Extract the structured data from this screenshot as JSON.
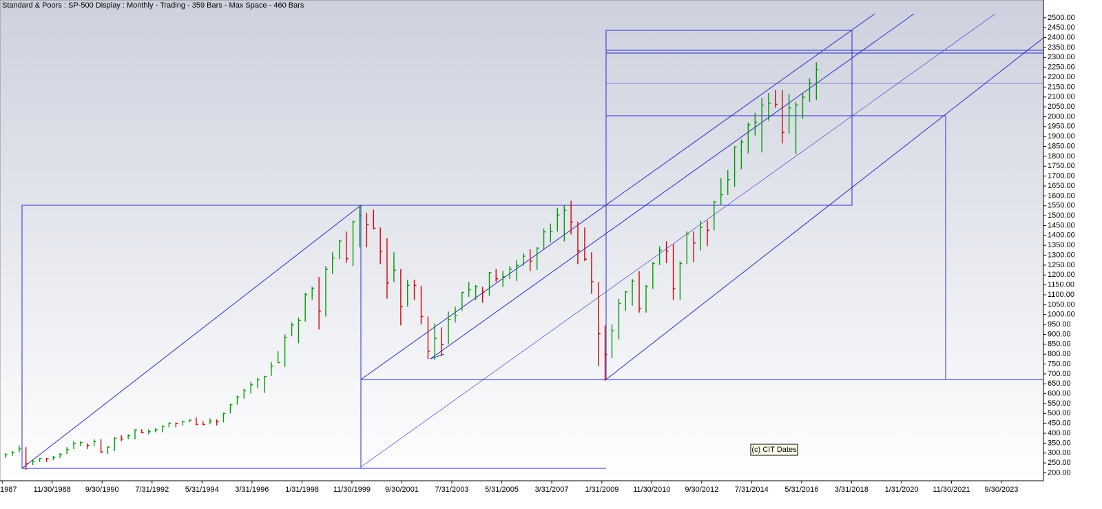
{
  "chart_data": {
    "type": "ohlc",
    "title": "Standard & Poors : SP-500 Display :  Monthly  - Trading - 359 Bars -  Max Space - 460 Bars",
    "annotation": "(c) CIT Dates",
    "x": [
      "1987-03",
      "1987-06",
      "1987-09",
      "1987-12",
      "1988-03",
      "1988-06",
      "1988-09",
      "1988-12",
      "1989-03",
      "1989-06",
      "1989-09",
      "1989-12",
      "1990-03",
      "1990-06",
      "1990-09",
      "1990-12",
      "1991-03",
      "1991-06",
      "1991-09",
      "1991-12",
      "1992-03",
      "1992-06",
      "1992-09",
      "1992-12",
      "1993-03",
      "1993-06",
      "1993-09",
      "1993-12",
      "1994-03",
      "1994-06",
      "1994-09",
      "1994-12",
      "1995-03",
      "1995-06",
      "1995-09",
      "1995-12",
      "1996-03",
      "1996-06",
      "1996-09",
      "1996-12",
      "1997-03",
      "1997-06",
      "1997-09",
      "1997-12",
      "1998-03",
      "1998-06",
      "1998-09",
      "1998-12",
      "1999-03",
      "1999-06",
      "1999-09",
      "1999-12",
      "2000-03",
      "2000-06",
      "2000-09",
      "2000-12",
      "2001-03",
      "2001-06",
      "2001-09",
      "2001-12",
      "2002-03",
      "2002-06",
      "2002-09",
      "2002-12",
      "2003-03",
      "2003-06",
      "2003-09",
      "2003-12",
      "2004-03",
      "2004-06",
      "2004-09",
      "2004-12",
      "2005-03",
      "2005-06",
      "2005-09",
      "2005-12",
      "2006-03",
      "2006-06",
      "2006-09",
      "2006-12",
      "2007-03",
      "2007-06",
      "2007-09",
      "2007-12",
      "2008-03",
      "2008-06",
      "2008-09",
      "2008-12",
      "2009-03",
      "2009-06",
      "2009-09",
      "2009-12",
      "2010-03",
      "2010-06",
      "2010-09",
      "2010-12",
      "2011-03",
      "2011-06",
      "2011-09",
      "2011-12",
      "2012-03",
      "2012-06",
      "2012-09",
      "2012-12",
      "2013-03",
      "2013-06",
      "2013-09",
      "2013-12",
      "2014-03",
      "2014-06",
      "2014-09",
      "2014-12",
      "2015-03",
      "2015-06",
      "2015-09",
      "2015-12",
      "2016-03",
      "2016-06",
      "2016-09",
      "2016-12"
    ],
    "high": [
      300,
      310,
      338,
      330,
      270,
      275,
      275,
      285,
      300,
      330,
      360,
      360,
      350,
      370,
      370,
      335,
      380,
      390,
      395,
      420,
      420,
      420,
      425,
      440,
      455,
      455,
      465,
      470,
      480,
      460,
      475,
      470,
      505,
      550,
      590,
      625,
      660,
      680,
      690,
      760,
      815,
      900,
      960,
      985,
      1110,
      1140,
      1190,
      1245,
      1315,
      1375,
      1420,
      1475,
      1555,
      1515,
      1530,
      1440,
      1385,
      1315,
      1230,
      1175,
      1175,
      1145,
      990,
      955,
      935,
      1015,
      1040,
      1115,
      1165,
      1150,
      1140,
      1215,
      1230,
      1220,
      1245,
      1275,
      1310,
      1330,
      1340,
      1435,
      1460,
      1540,
      1555,
      1575,
      1470,
      1440,
      1315,
      1165,
      945,
      950,
      1080,
      1120,
      1180,
      1220,
      1150,
      1265,
      1345,
      1370,
      1355,
      1270,
      1420,
      1420,
      1475,
      1475,
      1575,
      1690,
      1730,
      1850,
      1885,
      1970,
      2020,
      2095,
      2120,
      2135,
      2135,
      2115,
      2075,
      2120,
      2195,
      2275
    ],
    "low": [
      275,
      285,
      305,
      216,
      240,
      255,
      255,
      265,
      275,
      295,
      320,
      335,
      320,
      335,
      300,
      295,
      310,
      360,
      370,
      370,
      400,
      395,
      405,
      405,
      430,
      430,
      440,
      455,
      440,
      440,
      445,
      440,
      455,
      500,
      545,
      575,
      600,
      630,
      605,
      690,
      755,
      735,
      890,
      855,
      965,
      1075,
      925,
      990,
      1205,
      1280,
      1260,
      1245,
      1340,
      1340,
      1430,
      1255,
      1080,
      1165,
      945,
      1040,
      1075,
      950,
      775,
      770,
      790,
      850,
      960,
      1020,
      1090,
      1075,
      1060,
      1095,
      1165,
      1140,
      1180,
      1170,
      1245,
      1220,
      1225,
      1330,
      1365,
      1420,
      1370,
      1405,
      1255,
      1270,
      1105,
      740,
      665,
      780,
      875,
      1020,
      1045,
      1010,
      1010,
      1130,
      1250,
      1260,
      1075,
      1075,
      1255,
      1265,
      1325,
      1345,
      1425,
      1555,
      1605,
      1645,
      1735,
      1815,
      1905,
      1820,
      1980,
      2045,
      1865,
      1915,
      1810,
      1990,
      2075,
      2085
    ],
    "close": [
      291,
      304,
      321,
      247,
      258,
      273,
      271,
      277,
      294,
      317,
      349,
      353,
      339,
      358,
      306,
      330,
      375,
      371,
      388,
      417,
      403,
      408,
      418,
      435,
      451,
      450,
      458,
      466,
      445,
      444,
      462,
      459,
      500,
      544,
      584,
      615,
      645,
      670,
      687,
      740,
      757,
      885,
      947,
      970,
      1101,
      1133,
      1017,
      1229,
      1286,
      1372,
      1282,
      1469,
      1499,
      1455,
      1436,
      1320,
      1160,
      1224,
      1041,
      1148,
      1147,
      990,
      815,
      880,
      848,
      975,
      996,
      1112,
      1126,
      1141,
      1114,
      1212,
      1181,
      1191,
      1229,
      1248,
      1295,
      1270,
      1336,
      1418,
      1421,
      1503,
      1527,
      1468,
      1323,
      1280,
      1166,
      903,
      798,
      919,
      1057,
      1115,
      1169,
      1031,
      1141,
      1258,
      1326,
      1321,
      1131,
      1258,
      1408,
      1362,
      1441,
      1426,
      1569,
      1606,
      1682,
      1848,
      1872,
      1960,
      1972,
      2059,
      2068,
      2063,
      1920,
      2044,
      2060,
      2099,
      2168,
      2239
    ],
    "up_color": "#009a00",
    "down_color": "#d40000",
    "xlim": [
      "1987-01-01",
      "2025-04-15"
    ],
    "xticks": [
      {
        "value": "1987-01-31",
        "label": "1987"
      },
      {
        "value": "1988-11-30",
        "label": "11/30/1988"
      },
      {
        "value": "1990-09-30",
        "label": "9/30/1990"
      },
      {
        "value": "1992-07-31",
        "label": "7/31/1992"
      },
      {
        "value": "1994-05-31",
        "label": "5/31/1994"
      },
      {
        "value": "1996-03-31",
        "label": "3/31/1996"
      },
      {
        "value": "1998-01-31",
        "label": "1/31/1998"
      },
      {
        "value": "1999-11-30",
        "label": "11/30/1999"
      },
      {
        "value": "2001-09-30",
        "label": "9/30/2001"
      },
      {
        "value": "2003-07-31",
        "label": "7/31/2003"
      },
      {
        "value": "2005-05-31",
        "label": "5/31/2005"
      },
      {
        "value": "2007-03-31",
        "label": "3/31/2007"
      },
      {
        "value": "2009-01-31",
        "label": "1/31/2009"
      },
      {
        "value": "2010-11-30",
        "label": "11/30/2010"
      },
      {
        "value": "2012-09-30",
        "label": "9/30/2012"
      },
      {
        "value": "2014-07-31",
        "label": "7/31/2014"
      },
      {
        "value": "2016-05-31",
        "label": "5/31/2016"
      },
      {
        "value": "2018-03-31",
        "label": "3/31/2018"
      },
      {
        "value": "2020-01-31",
        "label": "1/31/2020"
      },
      {
        "value": "2021-11-30",
        "label": "11/30/2021"
      },
      {
        "value": "2023-09-30",
        "label": "9/30/2023"
      }
    ],
    "ylim": [
      160,
      2590
    ],
    "yticks": [
      {
        "value": 200,
        "label": "200.00"
      },
      {
        "value": 250,
        "label": "250.00"
      },
      {
        "value": 300,
        "label": "300.00"
      },
      {
        "value": 350,
        "label": "350.00"
      },
      {
        "value": 400,
        "label": "400.00"
      },
      {
        "value": 450,
        "label": "450.00"
      },
      {
        "value": 500,
        "label": "500.00"
      },
      {
        "value": 550,
        "label": "550.00"
      },
      {
        "value": 600,
        "label": "600.00"
      },
      {
        "value": 650,
        "label": "650.00"
      },
      {
        "value": 700,
        "label": "700.00"
      },
      {
        "value": 750,
        "label": "750.00"
      },
      {
        "value": 800,
        "label": "800.00"
      },
      {
        "value": 850,
        "label": "850.00"
      },
      {
        "value": 900,
        "label": "900.00"
      },
      {
        "value": 950,
        "label": "950.00"
      },
      {
        "value": 1000,
        "label": "1000.00"
      },
      {
        "value": 1050,
        "label": "1050.00"
      },
      {
        "value": 1100,
        "label": "1100.00"
      },
      {
        "value": 1150,
        "label": "1150.00"
      },
      {
        "value": 1200,
        "label": "1200.00"
      },
      {
        "value": 1250,
        "label": "1250.00"
      },
      {
        "value": 1300,
        "label": "1300.00"
      },
      {
        "value": 1350,
        "label": "1350.00"
      },
      {
        "value": 1400,
        "label": "1400.00"
      },
      {
        "value": 1450,
        "label": "1450.00"
      },
      {
        "value": 1500,
        "label": "1500.00"
      },
      {
        "value": 1550,
        "label": "1550.00"
      },
      {
        "value": 1600,
        "label": "1600.00"
      },
      {
        "value": 1650,
        "label": "1650.00"
      },
      {
        "value": 1700,
        "label": "1700.00"
      },
      {
        "value": 1750,
        "label": "1750.00"
      },
      {
        "value": 1800,
        "label": "1800.00"
      },
      {
        "value": 1850,
        "label": "1850.00"
      },
      {
        "value": 1900,
        "label": "1900.00"
      },
      {
        "value": 1950,
        "label": "1950.00"
      },
      {
        "value": 2000,
        "label": "2000.00"
      },
      {
        "value": 2050,
        "label": "2050.00"
      },
      {
        "value": 2100,
        "label": "2100.00"
      },
      {
        "value": 2150,
        "label": "2150.00"
      },
      {
        "value": 2200,
        "label": "2200.00"
      },
      {
        "value": 2250,
        "label": "2250.00"
      },
      {
        "value": 2300,
        "label": "2300.00"
      },
      {
        "value": 2350,
        "label": "2350.00"
      },
      {
        "value": 2400,
        "label": "2400.00"
      },
      {
        "value": 2450,
        "label": "2450.00"
      },
      {
        "value": 2500,
        "label": "2500.00"
      }
    ]
  }
}
